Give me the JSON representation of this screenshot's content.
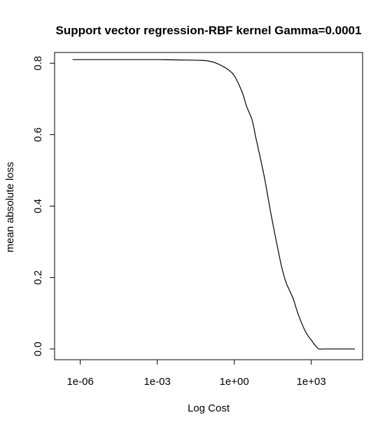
{
  "chart_data": {
    "type": "line",
    "title": "Support vector regression-RBF kernel Gamma=0.0001",
    "xlabel": "Log Cost",
    "ylabel": "mean absolute loss",
    "x_scale": "log10",
    "xlim": [
      1e-07,
      100000.0
    ],
    "ylim": [
      -0.03,
      0.83
    ],
    "x_ticks": [
      {
        "value": 1e-06,
        "label": "1e-06"
      },
      {
        "value": 0.001,
        "label": "1e-03"
      },
      {
        "value": 1,
        "label": "1e+00"
      },
      {
        "value": 1000.0,
        "label": "1e+03"
      }
    ],
    "y_ticks": [
      {
        "value": 0.0,
        "label": "0.0"
      },
      {
        "value": 0.2,
        "label": "0.2"
      },
      {
        "value": 0.4,
        "label": "0.4"
      },
      {
        "value": 0.6,
        "label": "0.6"
      },
      {
        "value": 0.8,
        "label": "0.8"
      }
    ],
    "grid": false,
    "legend": "none",
    "line_color": "#000000",
    "series": [
      {
        "x": [
          5e-07,
          1e-06,
          1e-05,
          0.0001,
          0.001,
          0.01,
          0.05,
          0.1,
          0.2,
          0.5,
          1,
          2,
          3,
          5,
          7,
          10,
          15,
          20,
          30,
          50,
          70,
          100,
          150,
          200,
          300,
          500,
          700,
          1000,
          1500,
          2000,
          3000,
          5000,
          10000,
          50000
        ],
        "y": [
          0.81,
          0.81,
          0.81,
          0.81,
          0.81,
          0.809,
          0.808,
          0.806,
          0.8,
          0.785,
          0.765,
          0.72,
          0.68,
          0.64,
          0.59,
          0.54,
          0.48,
          0.43,
          0.36,
          0.28,
          0.23,
          0.19,
          0.16,
          0.14,
          0.1,
          0.06,
          0.04,
          0.025,
          0.008,
          0.0,
          0.0,
          0.0,
          0.0,
          0.0
        ]
      }
    ]
  }
}
